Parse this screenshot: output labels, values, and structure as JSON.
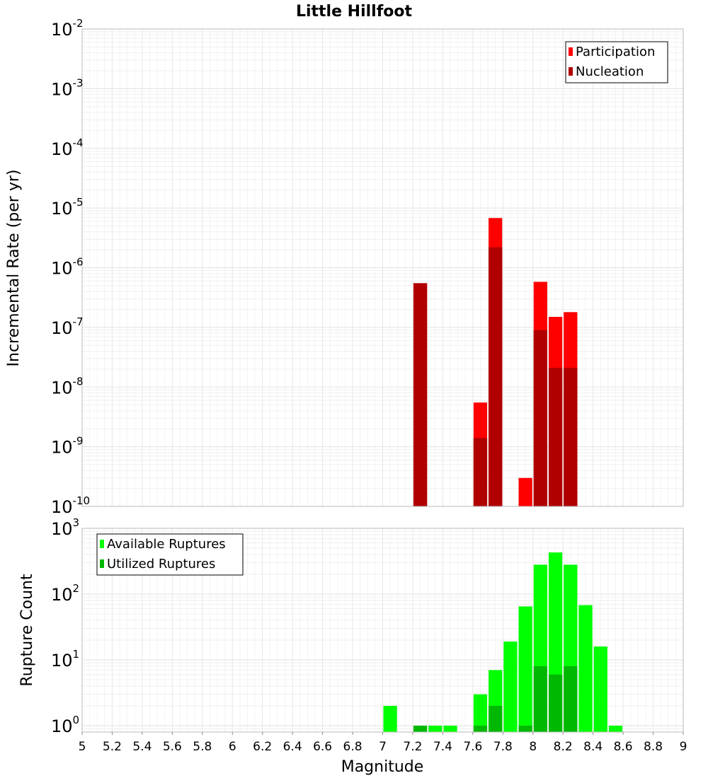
{
  "chart_data": [
    {
      "type": "bar",
      "title": "Little Hillfoot",
      "xlabel": "",
      "ylabel": "Incremental Rate (per yr)",
      "yscale": "log",
      "xlim": [
        5,
        9
      ],
      "ylim": [
        1e-10,
        0.01
      ],
      "y_ticks": [
        {
          "base": "10",
          "exp": "-2"
        },
        {
          "base": "10",
          "exp": "-3"
        },
        {
          "base": "10",
          "exp": "-4"
        },
        {
          "base": "10",
          "exp": "-5"
        },
        {
          "base": "10",
          "exp": "-6"
        },
        {
          "base": "10",
          "exp": "-7"
        },
        {
          "base": "10",
          "exp": "-8"
        },
        {
          "base": "10",
          "exp": "-9"
        },
        {
          "base": "10",
          "exp": "-10"
        }
      ],
      "grid": true,
      "legend_position": "top-right",
      "bar_width": 0.1,
      "series": [
        {
          "name": "Participation",
          "color": "#ff0000",
          "x": [
            7.25,
            7.65,
            7.75,
            7.95,
            8.05,
            8.15,
            8.25
          ],
          "values": [
            5.5e-07,
            5.5e-09,
            6.8e-06,
            3e-10,
            5.8e-07,
            1.5e-07,
            1.8e-07
          ]
        },
        {
          "name": "Nucleation",
          "color": "#b00000",
          "x": [
            7.25,
            7.65,
            7.75,
            8.05,
            8.15,
            8.25
          ],
          "values": [
            5.5e-07,
            1.4e-09,
            2.2e-06,
            9e-08,
            2.1e-08,
            2.1e-08
          ]
        }
      ]
    },
    {
      "type": "bar",
      "title": "",
      "xlabel": "Magnitude",
      "ylabel": "Rupture Count",
      "yscale": "log",
      "xlim": [
        5,
        9
      ],
      "ylim": [
        0.8,
        1000
      ],
      "x_ticks": [
        "5",
        "5.2",
        "5.4",
        "5.6",
        "5.8",
        "6",
        "6.2",
        "6.4",
        "6.6",
        "6.8",
        "7",
        "7.2",
        "7.4",
        "7.6",
        "7.8",
        "8",
        "8.2",
        "8.4",
        "8.6",
        "8.8",
        "9"
      ],
      "y_ticks": [
        {
          "base": "10",
          "exp": "3"
        },
        {
          "base": "10",
          "exp": "2"
        },
        {
          "base": "10",
          "exp": "1"
        },
        {
          "base": "10",
          "exp": "0"
        }
      ],
      "grid": true,
      "legend_position": "top-left",
      "bar_width": 0.1,
      "series": [
        {
          "name": "Available Ruptures",
          "color": "#00ff00",
          "x": [
            7.05,
            7.25,
            7.35,
            7.45,
            7.65,
            7.75,
            7.85,
            7.95,
            8.05,
            8.15,
            8.25,
            8.35,
            8.45,
            8.55
          ],
          "values": [
            2,
            1,
            1,
            1,
            3,
            7,
            19,
            65,
            280,
            430,
            280,
            68,
            16,
            1
          ]
        },
        {
          "name": "Utilized Ruptures",
          "color": "#00b800",
          "x": [
            7.25,
            7.65,
            7.75,
            7.95,
            8.05,
            8.15,
            8.25
          ],
          "values": [
            1,
            1,
            2,
            1,
            8,
            6,
            8
          ]
        }
      ]
    }
  ]
}
